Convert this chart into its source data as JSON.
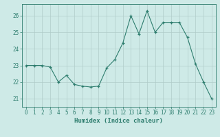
{
  "x": [
    0,
    1,
    2,
    3,
    4,
    5,
    6,
    7,
    8,
    9,
    10,
    11,
    12,
    13,
    14,
    15,
    16,
    17,
    18,
    19,
    20,
    21,
    22,
    23
  ],
  "y": [
    23.0,
    23.0,
    23.0,
    22.9,
    22.0,
    22.4,
    21.85,
    21.75,
    21.7,
    21.75,
    22.85,
    23.35,
    24.35,
    26.0,
    24.9,
    26.3,
    25.0,
    25.6,
    25.6,
    25.6,
    24.7,
    23.1,
    22.0,
    21.0
  ],
  "line_color": "#2e7d6e",
  "marker": "+",
  "marker_size": 3,
  "marker_lw": 0.9,
  "bg_color": "#ceeae7",
  "grid_color": "#b0ccc9",
  "axis_color": "#2e7d6e",
  "xlabel": "Humidex (Indice chaleur)",
  "ylim": [
    20.5,
    26.7
  ],
  "xlim": [
    -0.5,
    23.5
  ],
  "yticks": [
    21,
    22,
    23,
    24,
    25,
    26
  ],
  "xticks": [
    0,
    1,
    2,
    3,
    4,
    5,
    6,
    7,
    8,
    9,
    10,
    11,
    12,
    13,
    14,
    15,
    16,
    17,
    18,
    19,
    20,
    21,
    22,
    23
  ],
  "tick_color": "#2e7d6e",
  "label_fontsize": 5.5,
  "xlabel_fontsize": 6.5,
  "line_width": 0.8
}
